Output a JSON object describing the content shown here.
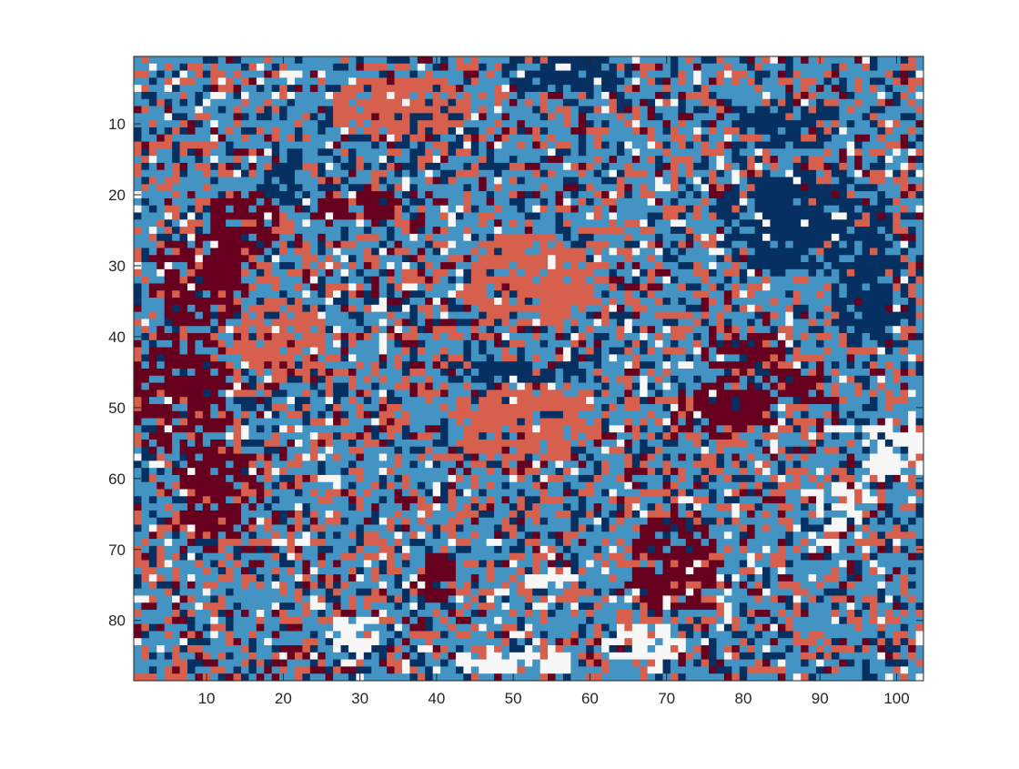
{
  "chart_data": {
    "type": "heatmap",
    "title": "",
    "xlabel": "",
    "ylabel": "",
    "n_cols": 103,
    "n_rows": 88,
    "xlim": [
      0.5,
      103.5
    ],
    "ylim": [
      0.5,
      88.5
    ],
    "y_reversed": true,
    "grid": false,
    "x_ticks": [
      10,
      20,
      30,
      40,
      50,
      60,
      70,
      80,
      90,
      100
    ],
    "x_tick_labels": [
      "10",
      "20",
      "30",
      "40",
      "50",
      "60",
      "70",
      "80",
      "90",
      "100"
    ],
    "y_ticks": [
      10,
      20,
      30,
      40,
      50,
      60,
      70,
      80
    ],
    "y_tick_labels": [
      "10",
      "20",
      "30",
      "40",
      "50",
      "60",
      "70",
      "80"
    ],
    "categories": [
      1,
      2,
      3,
      4,
      5
    ],
    "colormap": [
      "#f7f7f7",
      "#053061",
      "#4393c3",
      "#d6604d",
      "#67001f"
    ],
    "regions": [
      {
        "category": 5,
        "center": [
          7,
          48
        ],
        "radius": [
          7,
          9
        ]
      },
      {
        "category": 5,
        "center": [
          9,
          32
        ],
        "radius": [
          7,
          7
        ]
      },
      {
        "category": 5,
        "center": [
          12,
          62
        ],
        "radius": [
          6,
          7
        ]
      },
      {
        "category": 5,
        "center": [
          15,
          24
        ],
        "radius": [
          5,
          5
        ]
      },
      {
        "category": 5,
        "center": [
          30,
          22
        ],
        "radius": [
          7,
          3
        ]
      },
      {
        "category": 5,
        "center": [
          71,
          72
        ],
        "radius": [
          6,
          7
        ]
      },
      {
        "category": 5,
        "center": [
          78,
          50
        ],
        "radius": [
          5,
          5
        ]
      },
      {
        "category": 5,
        "center": [
          80,
          42
        ],
        "radius": [
          6,
          3
        ]
      },
      {
        "category": 5,
        "center": [
          87,
          47
        ],
        "radius": [
          5,
          3
        ]
      },
      {
        "category": 5,
        "center": [
          40,
          74
        ],
        "radius": [
          3,
          4
        ]
      },
      {
        "category": 4,
        "center": [
          52,
          32
        ],
        "radius": [
          9,
          7
        ]
      },
      {
        "category": 4,
        "center": [
          20,
          40
        ],
        "radius": [
          6,
          6
        ]
      },
      {
        "category": 4,
        "center": [
          52,
          52
        ],
        "radius": [
          10,
          6
        ]
      },
      {
        "category": 4,
        "center": [
          35,
          8
        ],
        "radius": [
          10,
          5
        ]
      },
      {
        "category": 2,
        "center": [
          88,
          24
        ],
        "radius": [
          12,
          8
        ]
      },
      {
        "category": 2,
        "center": [
          97,
          35
        ],
        "radius": [
          6,
          7
        ]
      },
      {
        "category": 2,
        "center": [
          50,
          45
        ],
        "radius": [
          10,
          2
        ]
      },
      {
        "category": 2,
        "center": [
          57,
          3
        ],
        "radius": [
          9,
          3
        ]
      },
      {
        "category": 2,
        "center": [
          39,
          9
        ],
        "radius": [
          5,
          3
        ]
      },
      {
        "category": 2,
        "center": [
          20,
          18
        ],
        "radius": [
          3,
          4
        ]
      },
      {
        "category": 2,
        "center": [
          86,
          10
        ],
        "radius": [
          7,
          4
        ]
      },
      {
        "category": 1,
        "center": [
          67,
          83
        ],
        "radius": [
          6,
          3
        ]
      },
      {
        "category": 1,
        "center": [
          50,
          86
        ],
        "radius": [
          9,
          2
        ]
      },
      {
        "category": 1,
        "center": [
          93,
          64
        ],
        "radius": [
          4,
          4
        ]
      },
      {
        "category": 1,
        "center": [
          100,
          56
        ],
        "radius": [
          5,
          5
        ]
      },
      {
        "category": 1,
        "center": [
          29,
          82
        ],
        "radius": [
          4,
          3
        ]
      },
      {
        "category": 1,
        "center": [
          59,
          3
        ],
        "radius": [
          5,
          2
        ]
      },
      {
        "category": 1,
        "center": [
          55,
          74
        ],
        "radius": [
          4,
          2
        ]
      }
    ],
    "background_mix": {
      "1": 0.07,
      "2": 0.16,
      "3": 0.47,
      "4": 0.22,
      "5": 0.08
    },
    "region_purity": 0.75
  }
}
